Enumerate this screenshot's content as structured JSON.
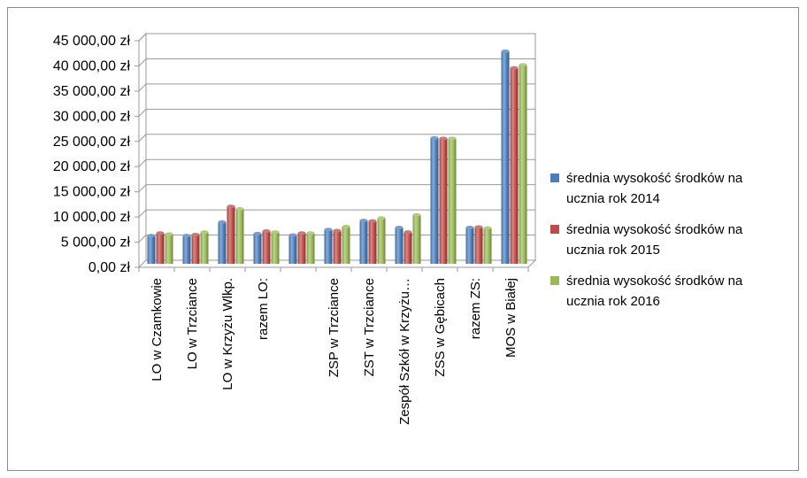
{
  "chart_data": {
    "type": "bar",
    "title": "",
    "xlabel": "",
    "ylabel": "",
    "ylim": [
      0,
      45000
    ],
    "yticks": [
      0,
      5000,
      10000,
      15000,
      20000,
      25000,
      30000,
      35000,
      40000,
      45000
    ],
    "ytick_labels": [
      "0,00 zł",
      "5 000,00 zł",
      "10 000,00 zł",
      "15 000,00 zł",
      "20 000,00 zł",
      "25 000,00 zł",
      "30 000,00 zł",
      "35 000,00 zł",
      "40 000,00 zł",
      "45 000,00 zł"
    ],
    "categories": [
      "LO w Czamkowie",
      "LO w Trzciance",
      "LO w Krzyżu Wlkp.",
      "razem LO:",
      "",
      "ZSP w Trzciance",
      "ZST w Trzciance",
      "Zespół Szkół w Krzyżu…",
      "ZSS w Gębicach",
      "razem ZS:",
      "MOS w Białej"
    ],
    "series": [
      {
        "name": "średnia wysokość środków na ucznia rok 2014",
        "color": "#4a7ebb",
        "values": [
          5600,
          5600,
          8300,
          6000,
          5700,
          6800,
          8600,
          7200,
          25000,
          7200,
          42200
        ]
      },
      {
        "name": "średnia wysokość środków na ucznia rok 2015",
        "color": "#be4b48",
        "values": [
          6100,
          5800,
          11400,
          6500,
          6100,
          6600,
          8500,
          6300,
          24900,
          7300,
          38900
        ]
      },
      {
        "name": "średnia wysokość środków na ucznia rok 2016",
        "color": "#98b954",
        "values": [
          5900,
          6300,
          10900,
          6300,
          6100,
          7400,
          9100,
          9700,
          24900,
          7100,
          39500
        ]
      }
    ],
    "grid": true,
    "legend_position": "right",
    "rendering": "3d-cylinder-bars"
  }
}
